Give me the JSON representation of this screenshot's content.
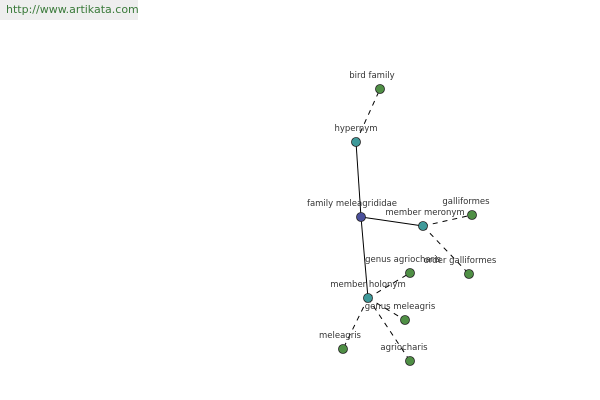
{
  "header": {
    "url": "http://www.artikata.com"
  },
  "nodes": [
    {
      "label": "family meleagrididae"
    },
    {
      "label": "hypernym"
    },
    {
      "label": "bird family"
    },
    {
      "label": "member meronym"
    },
    {
      "label": "galliformes"
    },
    {
      "label": "order galliformes"
    },
    {
      "label": "member holonym"
    },
    {
      "label": "genus agriocharis"
    },
    {
      "label": "genus meleagris"
    },
    {
      "label": "meleagris"
    },
    {
      "label": "agriocharis"
    }
  ]
}
